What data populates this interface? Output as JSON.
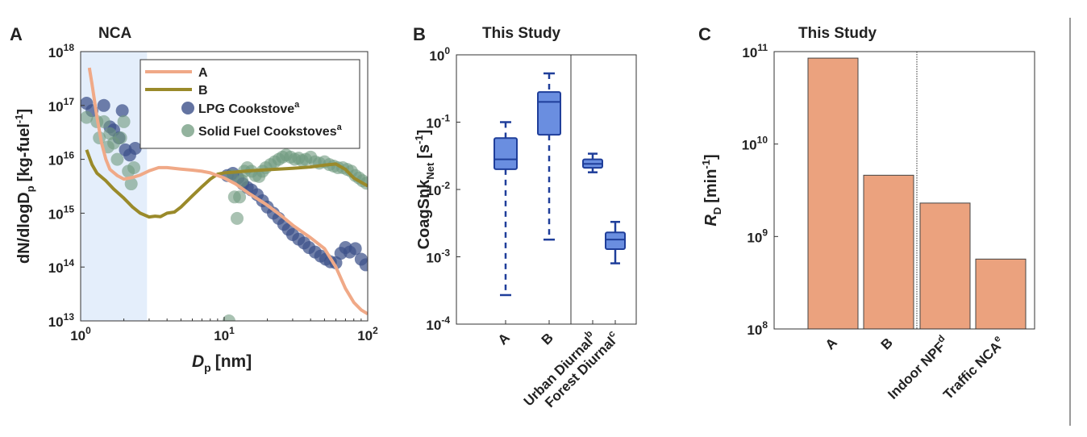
{
  "colors": {
    "line_a": "#f0a987",
    "line_b": "#9a8a2a",
    "lpg": "#3c5089",
    "solid": "#6f9a7e",
    "shade": "#e4eefb",
    "box_fill": "#6a8ee0",
    "box_stroke": "#1f3e9a",
    "bar_fill": "#eba27e",
    "bar_stroke": "#444444"
  },
  "panels": {
    "a": {
      "letter": "A",
      "title": "NCA"
    },
    "b": {
      "letter": "B",
      "title": "This Study"
    },
    "c": {
      "letter": "C",
      "title": "This Study"
    }
  },
  "chart_data": [
    {
      "type": "line",
      "panel": "A",
      "title": "NCA",
      "xlabel_main": "D",
      "xlabel_sub": "p",
      "xlabel_unit": "[nm]",
      "ylabel_prefix": "dN/dlogD",
      "ylabel_sub": "p",
      "ylabel_unit": "[kg-fuel",
      "ylabel_unit_sup": "-1",
      "ylabel_unit_end": "]",
      "xscale": "log",
      "yscale": "log",
      "xlim": [
        1,
        100
      ],
      "ylim": [
        10000000000000.0,
        1e+18
      ],
      "x_ticks": [
        {
          "base": "10",
          "exp": "0",
          "value": 1
        },
        {
          "base": "10",
          "exp": "1",
          "value": 10
        },
        {
          "base": "10",
          "exp": "2",
          "value": 100
        }
      ],
      "y_ticks": [
        {
          "base": "10",
          "exp": "13",
          "value": 10000000000000.0
        },
        {
          "base": "10",
          "exp": "14",
          "value": 100000000000000.0
        },
        {
          "base": "10",
          "exp": "15",
          "value": 1000000000000000.0
        },
        {
          "base": "10",
          "exp": "16",
          "value": 1e+16
        },
        {
          "base": "10",
          "exp": "17",
          "value": 1e+17
        },
        {
          "base": "10",
          "exp": "18",
          "value": 1e+18
        }
      ],
      "shaded_x_range": [
        1,
        2.9
      ],
      "legend_position": "top-right",
      "legend": [
        {
          "label": "A",
          "sup": ""
        },
        {
          "label": "B",
          "sup": ""
        },
        {
          "label": "LPG Cookstove",
          "sup": "a"
        },
        {
          "label": "Solid Fuel Cookstoves",
          "sup": "a"
        }
      ],
      "series": [
        {
          "name": "A",
          "kind": "line",
          "x": [
            1.15,
            1.2,
            1.3,
            1.4,
            1.5,
            1.6,
            1.8,
            2.0,
            2.3,
            2.6,
            3.0,
            3.5,
            4.0,
            5.0,
            6.0,
            7.0,
            8.0,
            10,
            12,
            15,
            20,
            25,
            30,
            40,
            50,
            60,
            70,
            80,
            90,
            100
          ],
          "y": [
            5e+17,
            2.5e+17,
            6e+16,
            2e+16,
            1e+16,
            6500000000000000.0,
            5000000000000000.0,
            4300000000000000.0,
            4600000000000000.0,
            5100000000000000.0,
            6100000000000000.0,
            7000000000000000.0,
            7000000000000000.0,
            6600000000000000.0,
            6300000000000000.0,
            6000000000000000.0,
            5600000000000000.0,
            4500000000000000.0,
            3500000000000000.0,
            2300000000000000.0,
            1400000000000000.0,
            900000000000000.0,
            600000000000000.0,
            350000000000000.0,
            220000000000000.0,
            100000000000000.0,
            40000000000000.0,
            22000000000000.0,
            16000000000000.0,
            13500000000000.0
          ]
        },
        {
          "name": "B",
          "kind": "line",
          "x": [
            1.1,
            1.2,
            1.3,
            1.5,
            1.7,
            2.0,
            2.3,
            2.6,
            3.0,
            3.3,
            3.6,
            4.0,
            4.5,
            5.0,
            6.0,
            7.0,
            8.0,
            9.0,
            10,
            12,
            15,
            20,
            30,
            40,
            50,
            60,
            70,
            80,
            100
          ],
          "y": [
            1.5e+16,
            8000000000000000.0,
            5500000000000000.0,
            4000000000000000.0,
            2800000000000000.0,
            1900000000000000.0,
            1300000000000000.0,
            1000000000000000.0,
            850000000000000.0,
            880000000000000.0,
            860000000000000.0,
            1000000000000000.0,
            1050000000000000.0,
            1300000000000000.0,
            2100000000000000.0,
            3100000000000000.0,
            4300000000000000.0,
            5300000000000000.0,
            5600000000000000.0,
            5800000000000000.0,
            6100000000000000.0,
            6400000000000000.0,
            6800000000000000.0,
            7200000000000000.0,
            7800000000000000.0,
            8200000000000000.0,
            6500000000000000.0,
            4500000000000000.0,
            3200000000000000.0
          ]
        },
        {
          "name": "LPG Cookstove",
          "kind": "scatter",
          "x": [
            1.1,
            1.2,
            1.45,
            1.6,
            1.7,
            1.85,
            1.95,
            2.05,
            2.2,
            2.4,
            10.5,
            11.5,
            12.5,
            13.5,
            14.5,
            15.5,
            17,
            18.5,
            20,
            22,
            24,
            26,
            28,
            30,
            33,
            36,
            39,
            43,
            47,
            51,
            55,
            60,
            65,
            70,
            75,
            82,
            90,
            97
          ],
          "y": [
            1.1e+17,
            8e+16,
            1e+17,
            4e+16,
            3.5e+16,
            2.5e+16,
            8e+16,
            1.5e+16,
            1.2e+16,
            1.6e+16,
            5000000000000000.0,
            5500000000000000.0,
            4500000000000000.0,
            3500000000000000.0,
            3000000000000000.0,
            2700000000000000.0,
            2200000000000000.0,
            1700000000000000.0,
            1300000000000000.0,
            1000000000000000.0,
            800000000000000.0,
            620000000000000.0,
            500000000000000.0,
            400000000000000.0,
            330000000000000.0,
            280000000000000.0,
            230000000000000.0,
            190000000000000.0,
            160000000000000.0,
            140000000000000.0,
            125000000000000.0,
            120000000000000.0,
            180000000000000.0,
            230000000000000.0,
            190000000000000.0,
            220000000000000.0,
            140000000000000.0,
            110000000000000.0
          ]
        },
        {
          "name": "Solid Fuel Cookstoves",
          "kind": "scatter",
          "x": [
            1.1,
            1.3,
            1.35,
            1.45,
            1.55,
            1.6,
            1.7,
            1.8,
            1.9,
            2.0,
            2.15,
            2.25,
            2.35,
            10.8,
            11.3,
            11.8,
            12.3,
            12.8,
            13.3,
            13.8,
            14.5,
            15.5,
            16.5,
            17.5,
            18.5,
            19.5,
            21,
            22.5,
            24,
            25.5,
            27,
            29,
            31,
            33,
            35,
            37,
            40,
            43,
            46,
            50,
            54,
            58,
            62,
            67,
            72,
            77,
            82,
            87,
            92,
            98
          ],
          "y": [
            6e+16,
            5e+16,
            2.5e+16,
            5e+16,
            1.7e+16,
            3e+16,
            2e+16,
            1e+16,
            2.5e+16,
            5e+16,
            6000000000000000.0,
            3500000000000000.0,
            7000000000000000.0,
            10000000000000.0,
            5000000000000000.0,
            2000000000000000.0,
            800000000000000.0,
            2000000000000000.0,
            4000000000000000.0,
            6000000000000000.0,
            7000000000000000.0,
            6000000000000000.0,
            5000000000000000.0,
            4800000000000000.0,
            6000000000000000.0,
            7000000000000000.0,
            8000000000000000.0,
            9000000000000000.0,
            1e+16,
            1.1e+16,
            1.2e+16,
            1.1e+16,
            1e+16,
            1.05e+16,
            9500000000000000.0,
            1e+16,
            1.1e+16,
            9000000000000000.0,
            8500000000000000.0,
            9000000000000000.0,
            8000000000000000.0,
            7500000000000000.0,
            7000000000000000.0,
            7000000000000000.0,
            6500000000000000.0,
            6000000000000000.0,
            5000000000000000.0,
            4500000000000000.0,
            4000000000000000.0,
            3600000000000000.0
          ]
        }
      ]
    },
    {
      "type": "box",
      "panel": "B",
      "title": "This Study",
      "ylabel": "CoagSnk",
      "ylabel_sub": "Net",
      "ylabel_unit": "[s",
      "ylabel_unit_sup": "-1",
      "ylabel_unit_end": "]",
      "yscale": "log",
      "ylim": [
        0.0001,
        1
      ],
      "y_ticks": [
        {
          "base": "10",
          "exp": "-4",
          "value": 0.0001
        },
        {
          "base": "10",
          "exp": "-3",
          "value": 0.001
        },
        {
          "base": "10",
          "exp": "-2",
          "value": 0.01
        },
        {
          "base": "10",
          "exp": "-1",
          "value": 0.1
        },
        {
          "base": "10",
          "exp": "0",
          "value": 1
        }
      ],
      "categories": [
        {
          "label": "A",
          "sup": ""
        },
        {
          "label": "B",
          "sup": ""
        },
        {
          "label": "Urban Diurnal",
          "sup": "b"
        },
        {
          "label": "Forest Diurnal",
          "sup": "c"
        }
      ],
      "divider_after_index": 1,
      "boxes": [
        {
          "min": 0.00027,
          "q1": 0.02,
          "median": 0.028,
          "q3": 0.058,
          "max": 0.1,
          "dashed_whisker": true
        },
        {
          "min": 0.0018,
          "q1": 0.065,
          "median": 0.2,
          "q3": 0.28,
          "max": 0.53,
          "dashed_whisker": true
        },
        {
          "min": 0.018,
          "q1": 0.021,
          "median": 0.024,
          "q3": 0.028,
          "max": 0.034,
          "dashed_whisker": false
        },
        {
          "min": 0.0008,
          "q1": 0.0013,
          "median": 0.0018,
          "q3": 0.0023,
          "max": 0.0033,
          "dashed_whisker": false
        }
      ]
    },
    {
      "type": "bar",
      "panel": "C",
      "title": "This Study",
      "ylabel": "R",
      "ylabel_sub": "D",
      "ylabel_unit": "[min",
      "ylabel_unit_sup": "-1",
      "ylabel_unit_end": "]",
      "yscale": "log",
      "ylim": [
        100000000.0,
        100000000000.0
      ],
      "y_ticks": [
        {
          "base": "10",
          "exp": "8",
          "value": 100000000.0
        },
        {
          "base": "10",
          "exp": "9",
          "value": 1000000000.0
        },
        {
          "base": "10",
          "exp": "10",
          "value": 10000000000.0
        },
        {
          "base": "10",
          "exp": "11",
          "value": 100000000000.0
        }
      ],
      "categories": [
        {
          "label": "A",
          "sup": ""
        },
        {
          "label": "B",
          "sup": ""
        },
        {
          "label": "Indoor NPF",
          "sup": "d"
        },
        {
          "label": "Traffic NCA",
          "sup": "e"
        }
      ],
      "divider_after_index": 1,
      "values": [
        85000000000.0,
        4600000000.0,
        2300000000.0,
        570000000.0
      ]
    }
  ]
}
